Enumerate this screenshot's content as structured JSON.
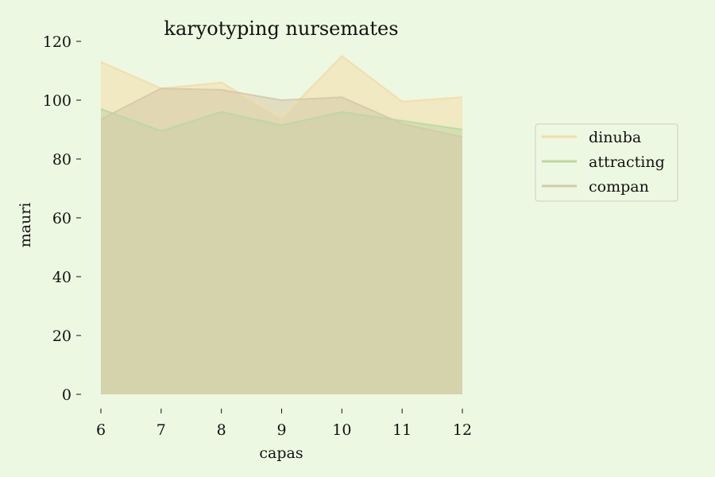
{
  "chart_data": {
    "type": "area",
    "title": "karyotyping nursemates",
    "xlabel": "capas",
    "ylabel": "mauri",
    "x": [
      6,
      7,
      8,
      9,
      10,
      11,
      12
    ],
    "xlim": [
      6,
      12
    ],
    "ylim": [
      0,
      120
    ],
    "xticks": [
      6,
      7,
      8,
      9,
      10,
      11,
      12
    ],
    "yticks": [
      0,
      20,
      40,
      60,
      80,
      100,
      120
    ],
    "grid": false,
    "legend_position": "right",
    "stacked": false,
    "series": [
      {
        "name": "dinuba",
        "values": [
          113,
          104,
          106,
          94,
          115,
          99.5,
          101
        ],
        "color": "#f3dca8"
      },
      {
        "name": "attracting",
        "values": [
          97,
          89.5,
          96,
          91.5,
          96,
          93,
          90
        ],
        "color": "#b9d9a0"
      },
      {
        "name": "compan",
        "values": [
          93.5,
          104,
          103.5,
          100,
          101,
          92,
          87.5
        ],
        "color": "#d5c9a8"
      }
    ]
  }
}
